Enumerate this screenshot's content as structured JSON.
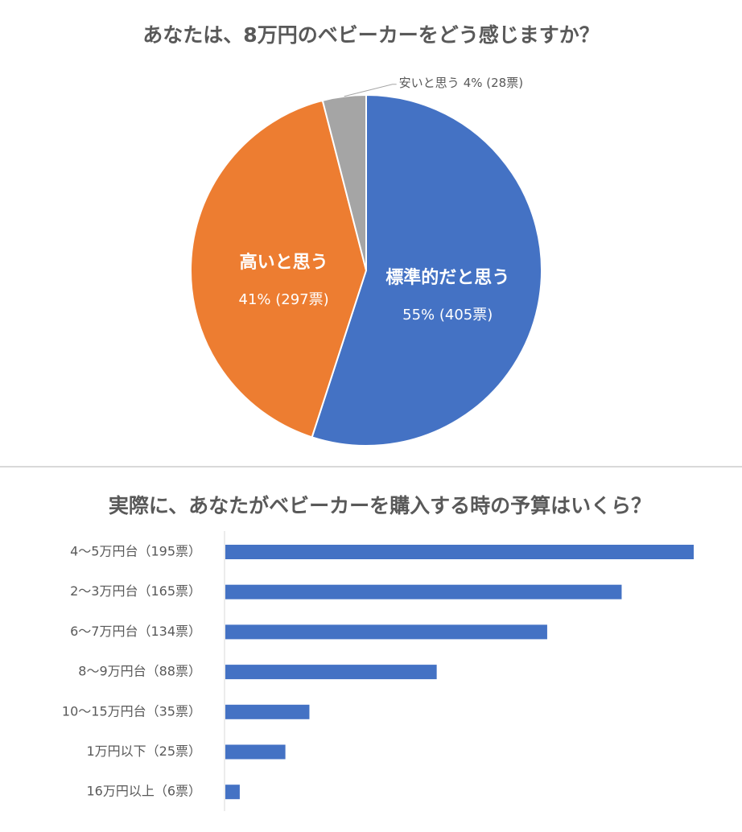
{
  "chart_data": [
    {
      "type": "pie",
      "title": "あなたは、8万円のベビーカーをどう感じますか？",
      "categories": [
        "標準的だと思う",
        "高いと思う",
        "安いと思う"
      ],
      "values": [
        55,
        41,
        4
      ],
      "value_labels": [
        "55% (405票)",
        "41% (297票)",
        "4% (28票)"
      ],
      "colors": [
        "#4472c4",
        "#ed7d31",
        "#a5a5a5"
      ]
    },
    {
      "type": "hbar",
      "title": "実際に、あなたがベビーカーを購入する時の予算はいくら？",
      "categories": [
        "4～5万円台（195票）",
        "2～3万円台（165票）",
        "6～7万円台（134票）",
        "8～9万円台（88票）",
        "10～15万円台（35票）",
        "1万円以下（25票）",
        "16万円以上（6票）"
      ],
      "values": [
        195,
        165,
        134,
        88,
        35,
        25,
        6
      ],
      "color": "#4472c4"
    }
  ]
}
